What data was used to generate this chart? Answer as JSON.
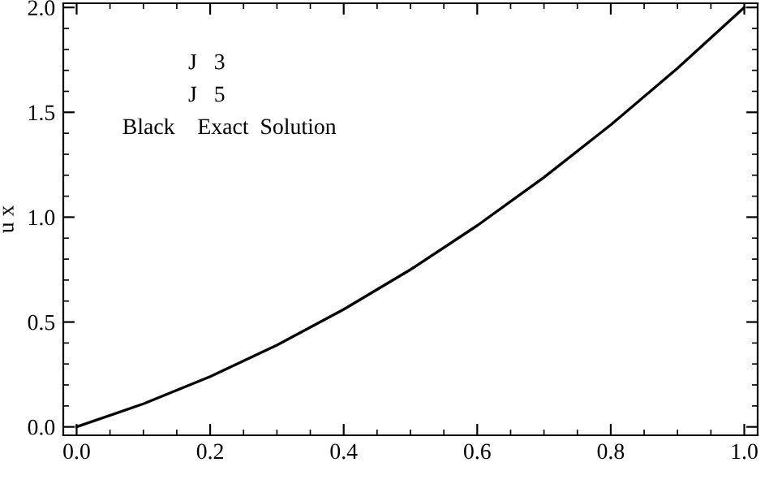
{
  "chart_data": {
    "type": "line",
    "ylabel": "u x",
    "annotations": [
      "J   3",
      "J   5",
      "Black    Exact  Solution"
    ],
    "x": [
      0,
      0.1,
      0.2,
      0.3,
      0.4,
      0.5,
      0.6,
      0.7,
      0.8,
      0.9,
      1.0
    ],
    "series": [
      {
        "color": "#000000",
        "values": [
          0,
          0.11,
          0.24,
          0.39,
          0.56,
          0.75,
          0.96,
          1.19,
          1.44,
          1.71,
          2.0
        ]
      }
    ],
    "xlim": [
      -0.02,
      1.02
    ],
    "ylim": [
      -0.04,
      2.02
    ],
    "xticks": [
      {
        "value": 0,
        "label": "0.0"
      },
      0.2,
      0.4,
      0.6,
      0.8,
      {
        "value": 1,
        "label": "1.0"
      }
    ],
    "yticks": [
      {
        "value": 0,
        "label": "0.0"
      },
      0.5,
      {
        "value": 1,
        "label": "1.0"
      },
      1.5,
      {
        "value": 2,
        "label": "2.0"
      }
    ],
    "grid": false,
    "legend": false,
    "line_style": "solid",
    "marker": "none"
  }
}
